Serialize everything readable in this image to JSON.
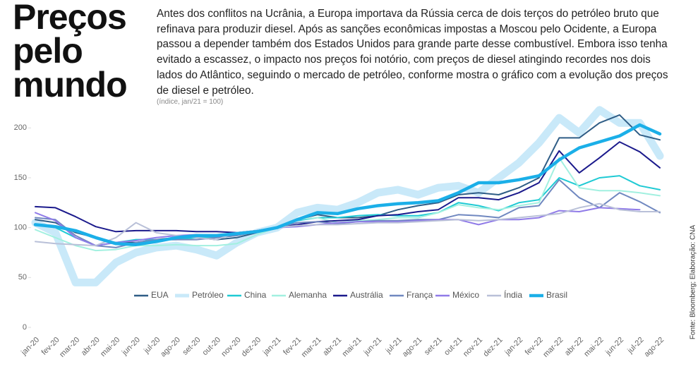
{
  "chart_data": {
    "type": "line",
    "title": "Preços pelo mundo",
    "text": "Antes dos conflitos na Ucrânia, a Europa importava da Rússia cerca de dois terços do petróleo bruto que refinava para produzir diesel. Após as sanções econômicas impostas a Moscou pelo Ocidente, a Europa passou a depender também dos Estados Unidos para grande parte desse combustível. Embora isso tenha evitado a escassez, o impacto nos preços foi notório, com preços de diesel atingindo recordes nos dois lados do Atlântico, seguindo o mercado de petróleo, conforme mostra o gráfico com  a evolução dos preços de diesel e petróleo.",
    "subtitle": "(índice, jan/21 = 100)",
    "source": "Fonte: Bloomberg; Elaboração: CNA",
    "categories": [
      "jan-20",
      "fev-20",
      "mar-20",
      "abr-20",
      "mai-20",
      "jun-20",
      "jul-20",
      "ago-20",
      "set-20",
      "out-20",
      "nov-20",
      "dez-20",
      "jan-21",
      "fev-21",
      "mar-21",
      "abr-21",
      "mai-21",
      "jun-21",
      "jul-21",
      "ago-21",
      "set-21",
      "out-21",
      "nov-21",
      "dez-21",
      "jan-22",
      "fev-22",
      "mar-22",
      "abr-22",
      "mai-22",
      "jun-22",
      "jul-22",
      "ago-22"
    ],
    "ylim": [
      0,
      220
    ],
    "yticks": [
      0,
      50,
      100,
      150,
      200
    ],
    "series": [
      {
        "name": "Petróleo",
        "color": "#c9e9f9",
        "values": [
          105,
          95,
          45,
          45,
          65,
          75,
          80,
          82,
          78,
          72,
          85,
          95,
          100,
          115,
          120,
          118,
          125,
          135,
          138,
          133,
          140,
          142,
          135,
          150,
          165,
          185,
          210,
          195,
          218,
          205,
          205,
          172
        ]
      },
      {
        "name": "EUA",
        "color": "#2f5d86",
        "values": [
          108,
          105,
          95,
          90,
          85,
          85,
          88,
          90,
          90,
          88,
          90,
          95,
          100,
          108,
          113,
          110,
          110,
          112,
          118,
          122,
          125,
          133,
          135,
          133,
          140,
          150,
          190,
          190,
          205,
          213,
          193,
          188
        ]
      },
      {
        "name": "China",
        "color": "#1fcad4",
        "values": [
          103,
          100,
          90,
          82,
          85,
          88,
          88,
          88,
          90,
          90,
          92,
          96,
          100,
          107,
          110,
          110,
          112,
          113,
          112,
          112,
          115,
          125,
          122,
          117,
          125,
          128,
          150,
          142,
          150,
          152,
          142,
          138
        ]
      },
      {
        "name": "Alemanha",
        "color": "#a2f0e0",
        "values": [
          98,
          90,
          82,
          77,
          78,
          82,
          82,
          83,
          82,
          82,
          84,
          93,
          100,
          108,
          110,
          105,
          107,
          108,
          110,
          110,
          115,
          123,
          120,
          118,
          122,
          125,
          170,
          140,
          137,
          137,
          135,
          132
        ]
      },
      {
        "name": "Austrália",
        "color": "#1b1a8c",
        "values": [
          121,
          120,
          111,
          101,
          96,
          97,
          97,
          97,
          96,
          96,
          95,
          97,
          100,
          103,
          106,
          107,
          108,
          112,
          113,
          116,
          118,
          130,
          130,
          128,
          135,
          145,
          177,
          155,
          170,
          186,
          176,
          160
        ]
      },
      {
        "name": "França",
        "color": "#7088c0",
        "values": [
          110,
          108,
          92,
          82,
          80,
          85,
          88,
          88,
          88,
          90,
          92,
          96,
          100,
          105,
          106,
          104,
          106,
          107,
          107,
          108,
          108,
          113,
          112,
          110,
          120,
          122,
          148,
          130,
          120,
          135,
          126,
          115
        ]
      },
      {
        "name": "México",
        "color": "#907be8",
        "values": [
          115,
          107,
          90,
          82,
          85,
          87,
          90,
          92,
          93,
          92,
          94,
          97,
          100,
          101,
          103,
          105,
          106,
          106,
          106,
          107,
          108,
          108,
          103,
          108,
          108,
          110,
          117,
          116,
          120,
          119,
          118,
          null
        ]
      },
      {
        "name": "Índia",
        "color": "#b9c0d8",
        "values": [
          86,
          84,
          83,
          82,
          90,
          105,
          95,
          92,
          90,
          88,
          95,
          97,
          100,
          102,
          103,
          103,
          104,
          105,
          105,
          106,
          107,
          108,
          107,
          108,
          110,
          112,
          114,
          120,
          124,
          118,
          116,
          116
        ]
      },
      {
        "name": "Brasil",
        "color": "#1bafe8",
        "values": [
          103,
          101,
          97,
          90,
          84,
          83,
          86,
          90,
          92,
          92,
          94,
          96,
          100,
          108,
          115,
          114,
          119,
          122,
          124,
          125,
          127,
          135,
          145,
          145,
          148,
          152,
          168,
          180,
          186,
          192,
          203,
          194
        ]
      }
    ]
  }
}
